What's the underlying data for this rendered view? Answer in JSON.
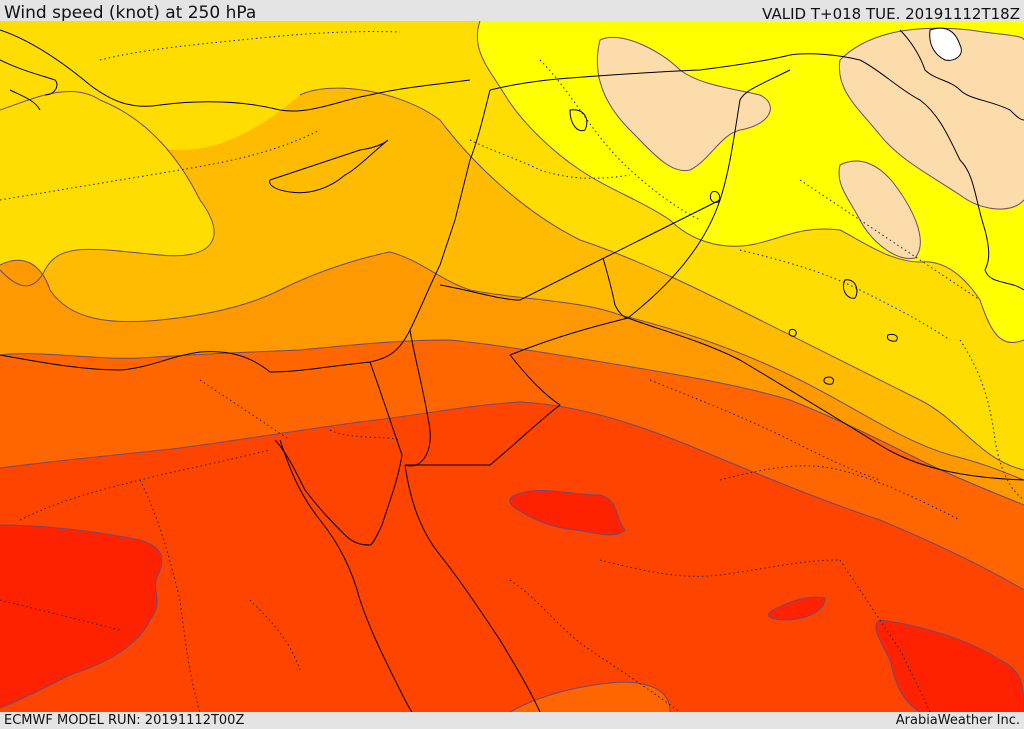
{
  "header": {
    "title": "Wind speed (knot) at 250 hPa",
    "valid": "VALID T+018 TUE. 20191112T18Z"
  },
  "footer": {
    "model_run": "ECMWF MODEL RUN: 20191112T00Z",
    "credit": "ArabiaWeather Inc."
  },
  "colors": {
    "band_peach": "#fcdcaa",
    "band_yellow": "#ffff00",
    "band_gold": "#ffdd00",
    "band_amber": "#ffbb00",
    "band_orange": "#ff9900",
    "band_dark_orange": "#ff6600",
    "band_red_orange": "#ff4400",
    "band_red": "#ff2200",
    "contour_line": "#6a4a7a",
    "border_line": "#000000"
  }
}
